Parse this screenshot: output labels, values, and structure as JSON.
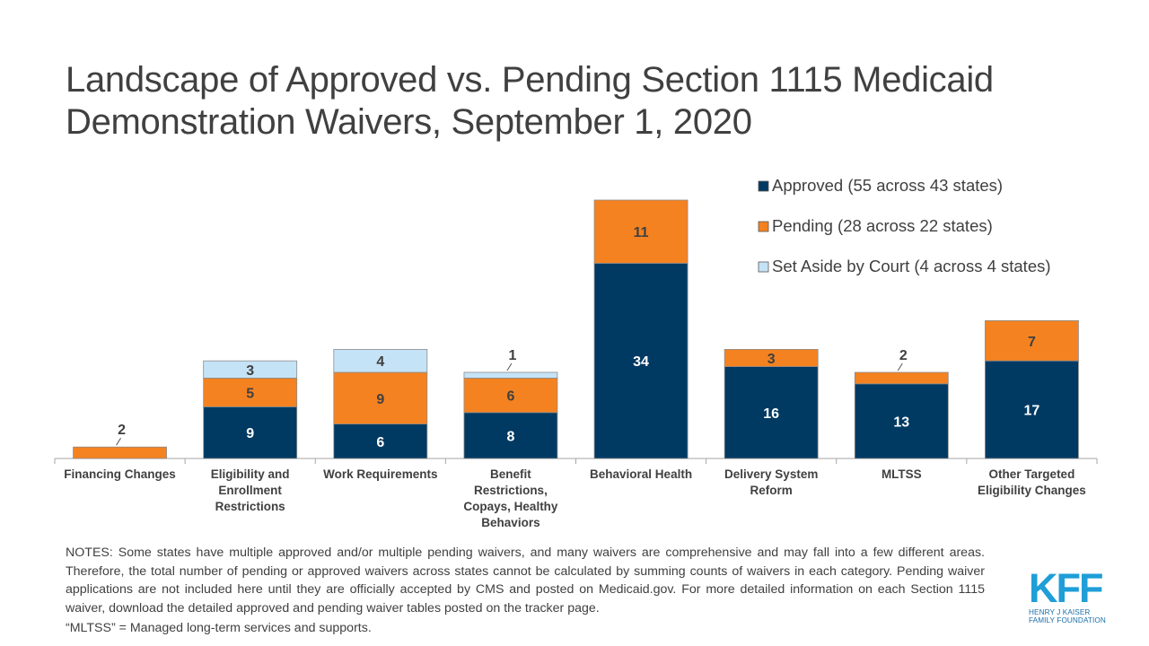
{
  "title": "Landscape of Approved vs. Pending Section 1115 Medicaid Demonstration Waivers, September 1, 2020",
  "notes": [
    "NOTES: Some states have multiple approved and/or multiple pending waivers, and many waivers are comprehensive and may fall into a few different areas. Therefore, the total number of pending or approved waivers across states cannot be calculated by summing counts of waivers in each category. Pending waiver applications are not included here until they are officially accepted by CMS and posted on Medicaid.gov. For more detailed information on each Section 1115 waiver, download the detailed approved and pending waiver tables posted on the tracker page.",
    "“MLTSS” = Managed long-term services and supports."
  ],
  "logo": {
    "mark": "KFF",
    "line1": "HENRY J KAISER",
    "line2": "FAMILY FOUNDATION"
  },
  "chart_data": {
    "type": "bar",
    "stacked": true,
    "categories": [
      "Financing Changes",
      "Eligibility and Enrollment Restrictions",
      "Work Requirements",
      "Benefit Restrictions, Copays, Healthy Behaviors",
      "Behavioral Health",
      "Delivery System Reform",
      "MLTSS",
      "Other Targeted Eligibility Changes"
    ],
    "category_label_lines": [
      [
        "Financing Changes"
      ],
      [
        "Eligibility and",
        "Enrollment",
        "Restrictions"
      ],
      [
        "Work Requirements"
      ],
      [
        "Benefit",
        "Restrictions,",
        "Copays, Healthy",
        "Behaviors"
      ],
      [
        "Behavioral Health"
      ],
      [
        "Delivery System",
        "Reform"
      ],
      [
        "MLTSS"
      ],
      [
        "Other Targeted",
        "Eligibility Changes"
      ]
    ],
    "series": [
      {
        "name": "Approved (55 across 43 states)",
        "color": "#003a63",
        "label_color": "#ffffff",
        "values": [
          0,
          9,
          6,
          8,
          34,
          16,
          13,
          17
        ]
      },
      {
        "name": "Pending (28 across 22 states)",
        "color": "#f58220",
        "label_color": "#404040",
        "values": [
          2,
          5,
          9,
          6,
          11,
          3,
          2,
          7
        ]
      },
      {
        "name": "Set Aside by Court (4 across 4 states)",
        "color": "#c5e3f6",
        "label_color": "#404040",
        "values": [
          0,
          3,
          4,
          1,
          0,
          0,
          0,
          0
        ]
      }
    ],
    "ylim": [
      0,
      46
    ],
    "grid": false,
    "legend_position": "top-right"
  }
}
